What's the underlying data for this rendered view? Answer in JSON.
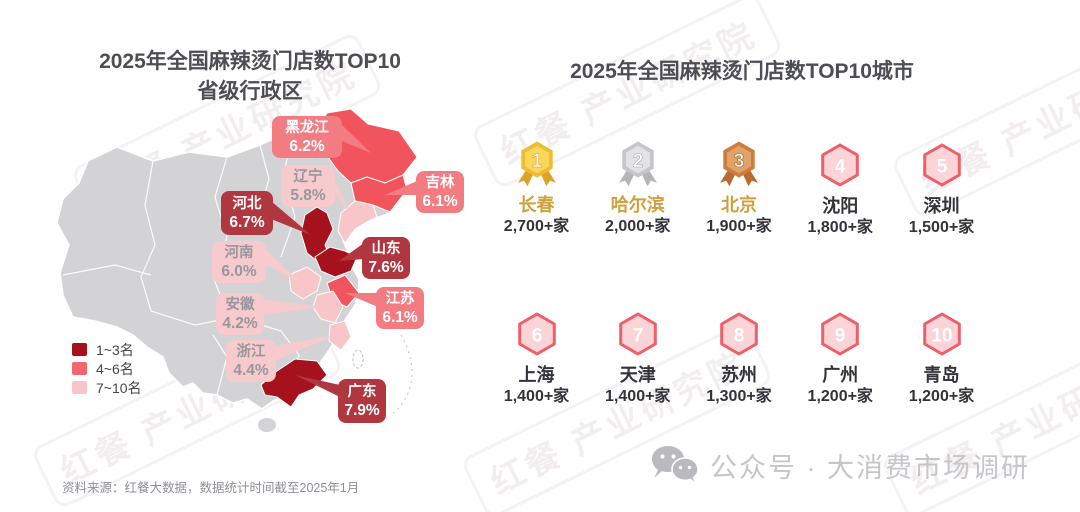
{
  "left_panel": {
    "title_line1": "2025年全国麻辣烫门店数TOP10",
    "title_line2": "省级行政区",
    "legend": [
      {
        "label": "1~3名",
        "color": "#a5121e"
      },
      {
        "label": "4~6名",
        "color": "#f4666d"
      },
      {
        "label": "7~10名",
        "color": "#f8c6c9"
      }
    ],
    "provinces": [
      {
        "id": "heilongjiang",
        "name": "黑龙江",
        "value": "6.2%",
        "tier": "mid"
      },
      {
        "id": "jilin",
        "name": "吉林",
        "value": "6.1%",
        "tier": "mid"
      },
      {
        "id": "liaoning",
        "name": "辽宁",
        "value": "5.8%",
        "tier": "low"
      },
      {
        "id": "hebei",
        "name": "河北",
        "value": "6.7%",
        "tier": "top"
      },
      {
        "id": "shandong",
        "name": "山东",
        "value": "7.6%",
        "tier": "top"
      },
      {
        "id": "henan",
        "name": "河南",
        "value": "6.0%",
        "tier": "low"
      },
      {
        "id": "jiangsu",
        "name": "江苏",
        "value": "6.1%",
        "tier": "mid"
      },
      {
        "id": "anhui",
        "name": "安徽",
        "value": "4.2%",
        "tier": "low"
      },
      {
        "id": "zhejiang",
        "name": "浙江",
        "value": "4.4%",
        "tier": "low"
      },
      {
        "id": "guangdong",
        "name": "广东",
        "value": "7.9%",
        "tier": "top"
      }
    ]
  },
  "right_panel": {
    "title": "2025年全国麻辣烫门店数TOP10城市",
    "cities": [
      {
        "rank": "1",
        "name": "长春",
        "count": "2,700+家",
        "medal": "gold"
      },
      {
        "rank": "2",
        "name": "哈尔滨",
        "count": "2,000+家",
        "medal": "silver"
      },
      {
        "rank": "3",
        "name": "北京",
        "count": "1,900+家",
        "medal": "bronze"
      },
      {
        "rank": "4",
        "name": "沈阳",
        "count": "1,800+家",
        "medal": ""
      },
      {
        "rank": "5",
        "name": "深圳",
        "count": "1,500+家",
        "medal": ""
      },
      {
        "rank": "6",
        "name": "上海",
        "count": "1,400+家",
        "medal": ""
      },
      {
        "rank": "7",
        "name": "天津",
        "count": "1,400+家",
        "medal": ""
      },
      {
        "rank": "8",
        "name": "苏州",
        "count": "1,300+家",
        "medal": ""
      },
      {
        "rank": "9",
        "name": "广州",
        "count": "1,200+家",
        "medal": ""
      },
      {
        "rank": "10",
        "name": "青岛",
        "count": "1,200+家",
        "medal": ""
      }
    ]
  },
  "footer": {
    "source": "资料来源：红餐大数据，数据统计时间截至2025年1月",
    "wechat_label": "公众号 · 大消费市场调研"
  },
  "watermark_text": "红餐 产业研究院",
  "colors": {
    "tier_top": "#a5121e",
    "tier_mid": "#f2545e",
    "tier_low": "#f8c6c9",
    "label_top_bg": "#b03740",
    "label_mid_bg": "#f27c82",
    "label_low_bg": "#f7cacd",
    "label_low_text": "#97979d",
    "map_base": "#d3d3d6",
    "hex_fill": "#fbd4d7",
    "hex_border": "#ee5f68",
    "top3_name": "#cfa03d",
    "text_dark": "#33333a"
  },
  "chart_data": [
    {
      "type": "heatmap",
      "subtype": "choropleth-china-map",
      "title": "2025年全国麻辣烫门店数TOP10省级行政区",
      "categories": [
        "黑龙江",
        "吉林",
        "辽宁",
        "河北",
        "山东",
        "河南",
        "江苏",
        "安徽",
        "浙江",
        "广东"
      ],
      "values": [
        6.2,
        6.1,
        5.8,
        6.7,
        7.6,
        6.0,
        6.1,
        4.2,
        4.4,
        7.9
      ],
      "unit": "%",
      "legend": [
        "1~3名",
        "4~6名",
        "7~10名"
      ],
      "legend_position": "bottom-left",
      "tiers": {
        "1~3名": [
          "河北",
          "山东",
          "广东"
        ],
        "4~6名": [
          "黑龙江",
          "吉林",
          "江苏"
        ],
        "7~10名": [
          "辽宁",
          "河南",
          "安徽",
          "浙江"
        ]
      }
    },
    {
      "type": "table",
      "title": "2025年全国麻辣烫门店数TOP10城市",
      "categories": [
        "长春",
        "哈尔滨",
        "北京",
        "沈阳",
        "深圳",
        "上海",
        "天津",
        "苏州",
        "广州",
        "青岛"
      ],
      "values": [
        2700,
        2000,
        1900,
        1800,
        1500,
        1400,
        1400,
        1300,
        1200,
        1200
      ],
      "value_labels": [
        "2,700+家",
        "2,000+家",
        "1,900+家",
        "1,800+家",
        "1,500+家",
        "1,400+家",
        "1,400+家",
        "1,300+家",
        "1,200+家",
        "1,200+家"
      ]
    }
  ]
}
